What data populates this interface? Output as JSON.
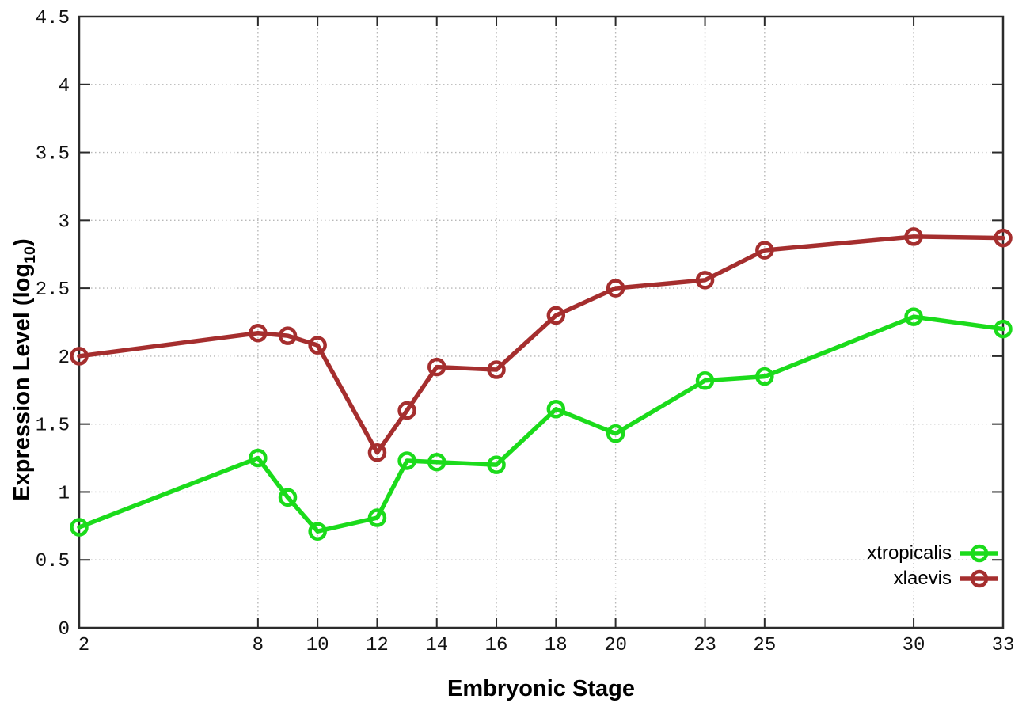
{
  "chart_data": {
    "type": "line",
    "title": "",
    "xlabel": "Embryonic Stage",
    "ylabel": "Expression Level (log10)",
    "ylabel_parts": {
      "pre": "Expression Level (log",
      "sub": "10",
      "post": ")"
    },
    "x": [
      2,
      8,
      9,
      10,
      12,
      13,
      14,
      16,
      18,
      20,
      23,
      25,
      30,
      33
    ],
    "series": [
      {
        "name": "xtropicalis",
        "color": "#1bdb1b",
        "values": [
          0.74,
          1.25,
          0.96,
          0.71,
          0.81,
          1.23,
          1.22,
          1.2,
          1.61,
          1.43,
          1.82,
          1.85,
          2.29,
          2.2
        ]
      },
      {
        "name": "xlaevis",
        "color": "#a52e2e",
        "values": [
          2.0,
          2.17,
          2.15,
          2.08,
          1.29,
          1.6,
          1.92,
          1.9,
          2.3,
          2.5,
          2.56,
          2.78,
          2.88,
          2.87
        ]
      }
    ],
    "xlim": [
      2,
      33
    ],
    "ylim": [
      0,
      4.5
    ],
    "x_tick_values": [
      2,
      8,
      10,
      12,
      14,
      16,
      18,
      20,
      23,
      25,
      30,
      33
    ],
    "x_tick_labels": [
      "2",
      "8",
      "10",
      "12",
      "14",
      "16",
      "18",
      "20",
      "23",
      "25",
      "30",
      "33"
    ],
    "y_tick_values": [
      0,
      0.5,
      1,
      1.5,
      2,
      2.5,
      3,
      3.5,
      4,
      4.5
    ],
    "y_tick_labels": [
      "0",
      "0.5",
      "1",
      "1.5",
      "2",
      "2.5",
      "3",
      "3.5",
      "4",
      "4.5"
    ],
    "grid": "dotted",
    "legend_position": "inside-bottom-right",
    "marker": "open-circle",
    "colors": {
      "axis": "#2b2b2b",
      "grid": "#b8b8b8",
      "tick_text": "#111111"
    }
  }
}
